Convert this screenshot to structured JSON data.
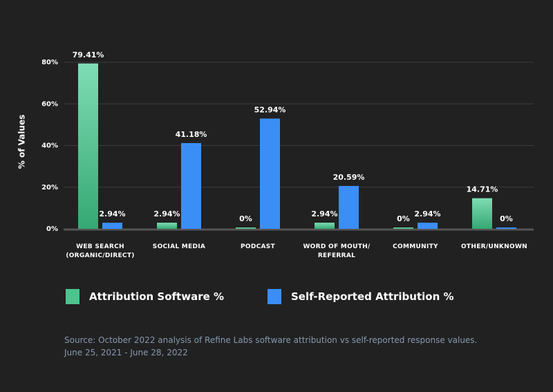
{
  "chart_data": {
    "type": "bar",
    "y_label": "% of Values",
    "categories": [
      "WEB SEARCH\n(ORGANIC/DIRECT)",
      "SOCIAL MEDIA",
      "PODCAST",
      "WORD OF MOUTH/\nREFERRAL",
      "COMMUNITY",
      "OTHER/UNKNOWN"
    ],
    "series": [
      {
        "name": "Attribution Software %",
        "color": "#4cc48e",
        "values": [
          79.41,
          2.94,
          0,
          2.94,
          0,
          14.71
        ],
        "value_labels": [
          "79.41%",
          "2.94%",
          "0%",
          "2.94%",
          "0%",
          "14.71%"
        ]
      },
      {
        "name": "Self-Reported Attribution %",
        "color": "#3b8ef5",
        "values": [
          2.94,
          41.18,
          52.94,
          20.59,
          2.94,
          0
        ],
        "value_labels": [
          "2.94%",
          "41.18%",
          "52.94%",
          "20.59%",
          "2.94%",
          "0%"
        ]
      }
    ],
    "ylim": [
      0,
      80
    ],
    "yticks": [
      {
        "value": 0,
        "label": "0%"
      },
      {
        "value": 20,
        "label": "20%"
      },
      {
        "value": 40,
        "label": "40%"
      },
      {
        "value": 60,
        "label": "60%"
      },
      {
        "value": 80,
        "label": "80%"
      }
    ],
    "grid": true,
    "source": [
      "Source: October 2022 analysis of Refine Labs software attribution vs self-reported response values.",
      "June 25, 2021 - June 28, 2022"
    ]
  }
}
